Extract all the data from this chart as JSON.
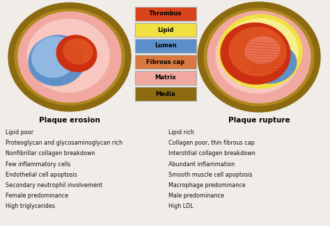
{
  "background_color": "#f0ede8",
  "title_left": "Plaque erosion",
  "title_right": "Plaque rupture",
  "legend_items": [
    {
      "label": "Thrombus",
      "color": "#d9431c"
    },
    {
      "label": "Lipid",
      "color": "#f0e040"
    },
    {
      "label": "Lumen",
      "color": "#5b8fc9"
    },
    {
      "label": "Fibrous cap",
      "color": "#d97840"
    },
    {
      "label": "Matrix",
      "color": "#f0a8a0"
    },
    {
      "label": "Media",
      "color": "#8b6a10"
    }
  ],
  "left_bullets": [
    "Lipid poor",
    "Proteoglycan and glycosaminoglycan rich",
    "Nonfibrillar collagen breakdown",
    "Few inflammatory cells",
    "Endothelial cell apoptosis",
    "Secondary neutrophil involvement",
    "Female predominance",
    "High triglycerides"
  ],
  "right_bullets": [
    "Lipid rich",
    "Collagen poor, thin fibrous cap",
    "Interstitial collagen breakdown",
    "Abundant inflammation",
    "Smooth muscle cell apoptosis",
    "Macrophage predominance",
    "Male predominance",
    "High LDL"
  ],
  "colors": {
    "media": "#8b6a10",
    "media_light": "#b08820",
    "matrix": "#f0a8a0",
    "matrix_light": "#f8c8c0",
    "fibrous_cap": "#d97840",
    "lumen": "#6090c8",
    "lumen_light": "#90b8e0",
    "lipid": "#f0e040",
    "lipid_light": "#f8f090",
    "thrombus": "#cc3010",
    "thrombus_mid": "#dd5020",
    "thrombus_light": "#e87050"
  }
}
